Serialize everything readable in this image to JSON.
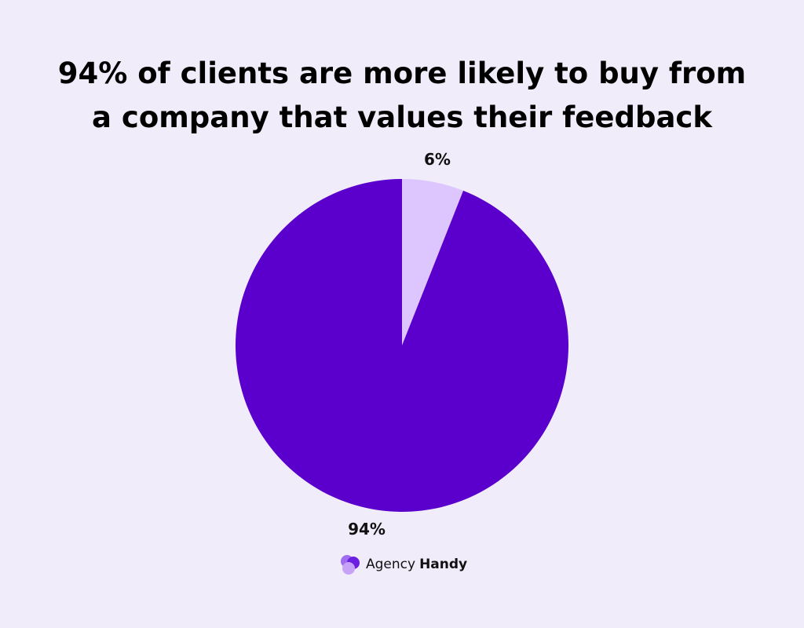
{
  "chart_data": {
    "type": "pie",
    "title": "94% of clients are more likely to buy from a company that values their feedback",
    "values": [
      6,
      94
    ],
    "value_labels": [
      "6%",
      "94%"
    ],
    "colors": [
      "#dcc6fd",
      "#5b00cc"
    ]
  },
  "logo": {
    "text": "Agency",
    "bold": "Handy"
  }
}
